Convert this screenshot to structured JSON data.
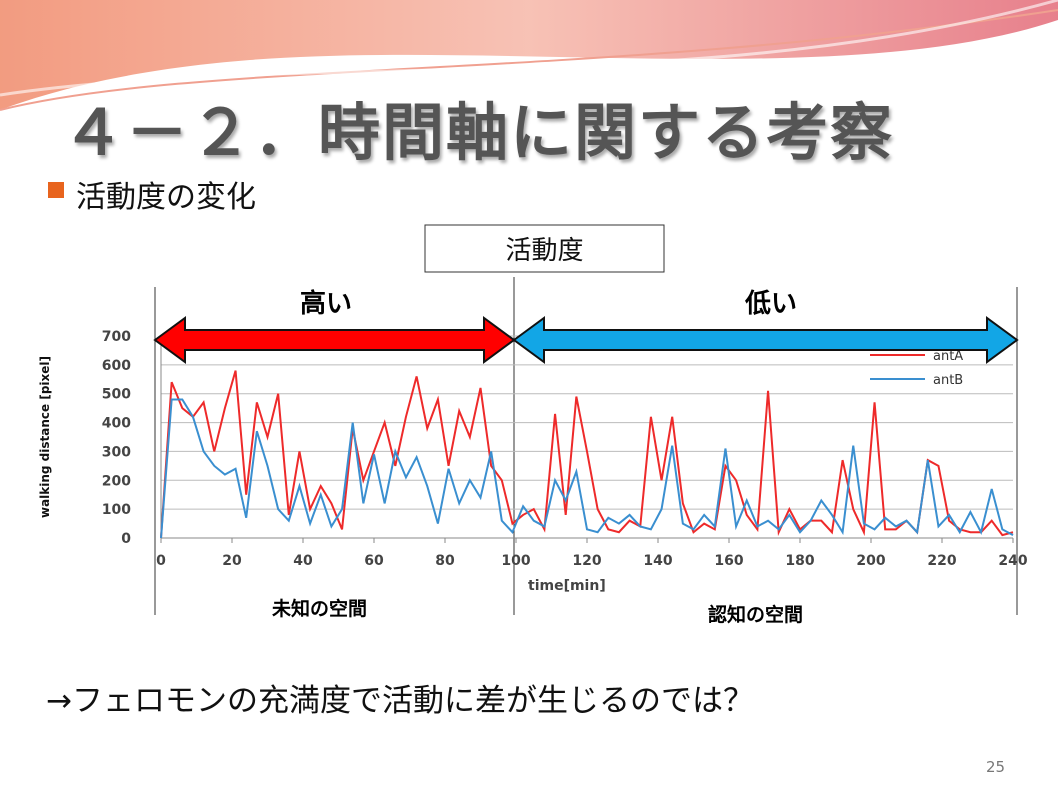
{
  "title": "４－２．時間軸に関する考察",
  "bullet": "活動度の変化",
  "box_label": "活動度",
  "high_label": "高い",
  "low_label": "低い",
  "unknown_space": "未知の空間",
  "known_space": "認知の空間",
  "conclusion": "→フェロモンの充満度で活動に差が生じるのでは？",
  "page_number": "25",
  "chart_data": {
    "type": "line",
    "x_label": "time[min]",
    "y_label": "walking distance [pixel]",
    "x": [
      0,
      3,
      6,
      9,
      12,
      15,
      18,
      21,
      24,
      27,
      30,
      33,
      36,
      39,
      42,
      45,
      48,
      51,
      54,
      57,
      60,
      63,
      66,
      69,
      72,
      75,
      78,
      81,
      84,
      87,
      90,
      93,
      96,
      99,
      102,
      105,
      108,
      111,
      114,
      117,
      120,
      123,
      126,
      129,
      132,
      135,
      138,
      141,
      144,
      147,
      150,
      153,
      156,
      159,
      162,
      165,
      168,
      171,
      174,
      177,
      180,
      183,
      186,
      189,
      192,
      195,
      198,
      201,
      204,
      207,
      210,
      213,
      216,
      219,
      222,
      225,
      228,
      231,
      234,
      237,
      240
    ],
    "series": [
      {
        "name": "antA",
        "color": "#ee2a2a",
        "values": [
          0,
          540,
          450,
          420,
          470,
          300,
          450,
          580,
          150,
          470,
          350,
          500,
          80,
          300,
          100,
          180,
          120,
          30,
          380,
          200,
          300,
          400,
          250,
          420,
          560,
          380,
          480,
          250,
          440,
          350,
          520,
          250,
          200,
          50,
          80,
          100,
          30,
          430,
          80,
          490,
          300,
          100,
          30,
          20,
          60,
          40,
          420,
          200,
          420,
          120,
          20,
          50,
          30,
          250,
          200,
          80,
          30,
          510,
          20,
          100,
          30,
          60,
          60,
          20,
          270,
          100,
          20,
          470,
          30,
          30,
          60,
          20,
          270,
          250,
          60,
          30,
          20,
          20,
          60,
          10,
          20
        ]
      },
      {
        "name": "antB",
        "color": "#3a8fd0",
        "values": [
          0,
          480,
          480,
          420,
          300,
          250,
          220,
          240,
          70,
          370,
          250,
          100,
          60,
          180,
          50,
          150,
          40,
          100,
          400,
          120,
          290,
          120,
          300,
          210,
          280,
          180,
          50,
          240,
          120,
          200,
          140,
          300,
          60,
          20,
          110,
          60,
          40,
          200,
          130,
          230,
          30,
          20,
          70,
          50,
          80,
          40,
          30,
          100,
          320,
          50,
          30,
          80,
          40,
          310,
          40,
          130,
          40,
          60,
          30,
          80,
          20,
          60,
          130,
          80,
          20,
          320,
          50,
          30,
          70,
          40,
          60,
          20,
          270,
          40,
          80,
          20,
          90,
          20,
          170,
          30,
          10
        ]
      }
    ],
    "xlim": [
      0,
      240
    ],
    "xticks": [
      0,
      20,
      40,
      60,
      80,
      100,
      120,
      140,
      160,
      180,
      200,
      220,
      240
    ],
    "ylim": [
      0,
      700
    ],
    "yticks": [
      0,
      100,
      200,
      300,
      400,
      500,
      600,
      700
    ],
    "grid": true
  }
}
